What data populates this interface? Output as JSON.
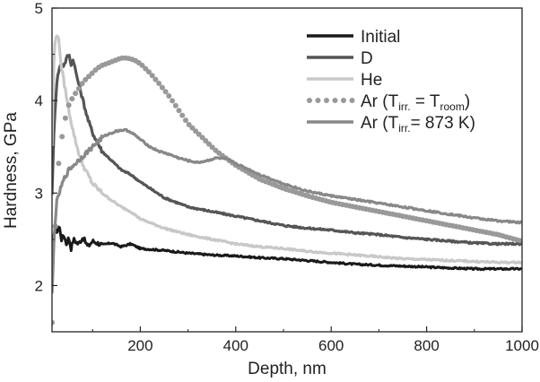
{
  "chart_data": {
    "type": "line",
    "xlabel": "Depth, nm",
    "ylabel": "Hardness, GPa",
    "xlim": [
      15,
      1000
    ],
    "ylim": [
      1.5,
      5
    ],
    "xticks": [
      200,
      400,
      600,
      800,
      1000
    ],
    "yticks": [
      2,
      3,
      4,
      5
    ],
    "grid": false,
    "legend_position": "top-right",
    "series": [
      {
        "name": "Initial",
        "color": "#1a1a1a",
        "style": "solid",
        "x": [
          15,
          18,
          22,
          26,
          30,
          35,
          40,
          45,
          50,
          55,
          60,
          70,
          80,
          90,
          100,
          120,
          140,
          160,
          180,
          200,
          250,
          300,
          350,
          400,
          450,
          500,
          550,
          600,
          650,
          700,
          750,
          800,
          850,
          900,
          950,
          1000
        ],
        "y": [
          2.35,
          2.55,
          2.62,
          2.58,
          2.65,
          2.5,
          2.55,
          2.45,
          2.52,
          2.4,
          2.5,
          2.45,
          2.52,
          2.42,
          2.48,
          2.44,
          2.46,
          2.42,
          2.45,
          2.4,
          2.38,
          2.35,
          2.33,
          2.32,
          2.3,
          2.29,
          2.27,
          2.25,
          2.23,
          2.22,
          2.21,
          2.2,
          2.19,
          2.18,
          2.18,
          2.18
        ]
      },
      {
        "name": "D",
        "color": "#555555",
        "style": "solid",
        "x": [
          15,
          20,
          25,
          30,
          35,
          40,
          45,
          50,
          55,
          60,
          65,
          70,
          80,
          90,
          100,
          120,
          140,
          160,
          180,
          200,
          250,
          300,
          350,
          400,
          450,
          500,
          550,
          600,
          650,
          700,
          750,
          800,
          850,
          900,
          950,
          1000
        ],
        "y": [
          3.0,
          3.8,
          4.2,
          4.35,
          4.4,
          4.38,
          4.45,
          4.5,
          4.4,
          4.45,
          4.3,
          4.2,
          4.0,
          3.8,
          3.65,
          3.45,
          3.35,
          3.25,
          3.2,
          3.12,
          2.95,
          2.85,
          2.8,
          2.75,
          2.7,
          2.65,
          2.62,
          2.6,
          2.57,
          2.55,
          2.52,
          2.5,
          2.48,
          2.46,
          2.45,
          2.45
        ]
      },
      {
        "name": "He",
        "color": "#c8c8c8",
        "style": "solid",
        "x": [
          15,
          18,
          20,
          22,
          25,
          28,
          30,
          35,
          40,
          45,
          50,
          60,
          70,
          80,
          90,
          100,
          120,
          140,
          160,
          180,
          200,
          250,
          300,
          350,
          400,
          450,
          500,
          550,
          600,
          650,
          700,
          750,
          800,
          850,
          900,
          950,
          1000
        ],
        "y": [
          3.5,
          4.3,
          4.55,
          4.65,
          4.72,
          4.7,
          4.6,
          4.35,
          4.2,
          4.05,
          3.9,
          3.65,
          3.45,
          3.3,
          3.2,
          3.1,
          3.0,
          2.92,
          2.85,
          2.8,
          2.72,
          2.62,
          2.55,
          2.5,
          2.45,
          2.42,
          2.4,
          2.37,
          2.35,
          2.33,
          2.31,
          2.29,
          2.28,
          2.27,
          2.26,
          2.25,
          2.25
        ]
      },
      {
        "name": "Ar (Tirr. = Troom)",
        "color": "#999999",
        "style": "dotted",
        "x": [
          15,
          20,
          25,
          30,
          40,
          50,
          60,
          70,
          80,
          90,
          100,
          110,
          120,
          130,
          140,
          150,
          160,
          170,
          180,
          190,
          200,
          220,
          240,
          260,
          280,
          300,
          330,
          360,
          400,
          450,
          500,
          550,
          600,
          650,
          700,
          750,
          800,
          850,
          900,
          950,
          1000
        ],
        "y": [
          1.6,
          2.4,
          3.0,
          3.4,
          3.75,
          3.95,
          4.05,
          4.12,
          4.2,
          4.25,
          4.3,
          4.35,
          4.38,
          4.4,
          4.42,
          4.44,
          4.46,
          4.46,
          4.45,
          4.43,
          4.4,
          4.3,
          4.18,
          4.05,
          3.9,
          3.75,
          3.6,
          3.45,
          3.3,
          3.15,
          3.05,
          2.97,
          2.9,
          2.85,
          2.8,
          2.75,
          2.7,
          2.65,
          2.6,
          2.55,
          2.48
        ]
      },
      {
        "name": "Ar (Tirr. = 873 K)",
        "color": "#888888",
        "style": "solid",
        "x": [
          15,
          20,
          25,
          30,
          40,
          50,
          60,
          70,
          80,
          90,
          100,
          110,
          120,
          130,
          140,
          150,
          160,
          170,
          180,
          190,
          200,
          220,
          240,
          260,
          280,
          300,
          320,
          340,
          360,
          380,
          400,
          450,
          500,
          550,
          600,
          650,
          700,
          750,
          800,
          850,
          900,
          950,
          1000
        ],
        "y": [
          1.9,
          2.6,
          2.9,
          3.0,
          3.15,
          3.25,
          3.3,
          3.35,
          3.4,
          3.45,
          3.5,
          3.55,
          3.6,
          3.63,
          3.65,
          3.67,
          3.68,
          3.68,
          3.66,
          3.62,
          3.58,
          3.5,
          3.45,
          3.42,
          3.38,
          3.35,
          3.33,
          3.35,
          3.38,
          3.37,
          3.32,
          3.2,
          3.1,
          3.02,
          2.97,
          2.93,
          2.89,
          2.85,
          2.81,
          2.77,
          2.73,
          2.7,
          2.68
        ]
      }
    ],
    "legend": [
      {
        "key": "initial",
        "label": "Initial"
      },
      {
        "key": "d",
        "label": "D"
      },
      {
        "key": "he",
        "label": "He"
      },
      {
        "key": "ar-room",
        "prefix": "Ar (T",
        "sub1": "irr.",
        "mid": " = T",
        "sub2": "room",
        "suffix": ")"
      },
      {
        "key": "ar-873",
        "prefix": "Ar (T",
        "sub1": "irr.",
        "mid": "= 873 K)",
        "sub2": "",
        "suffix": ""
      }
    ]
  }
}
